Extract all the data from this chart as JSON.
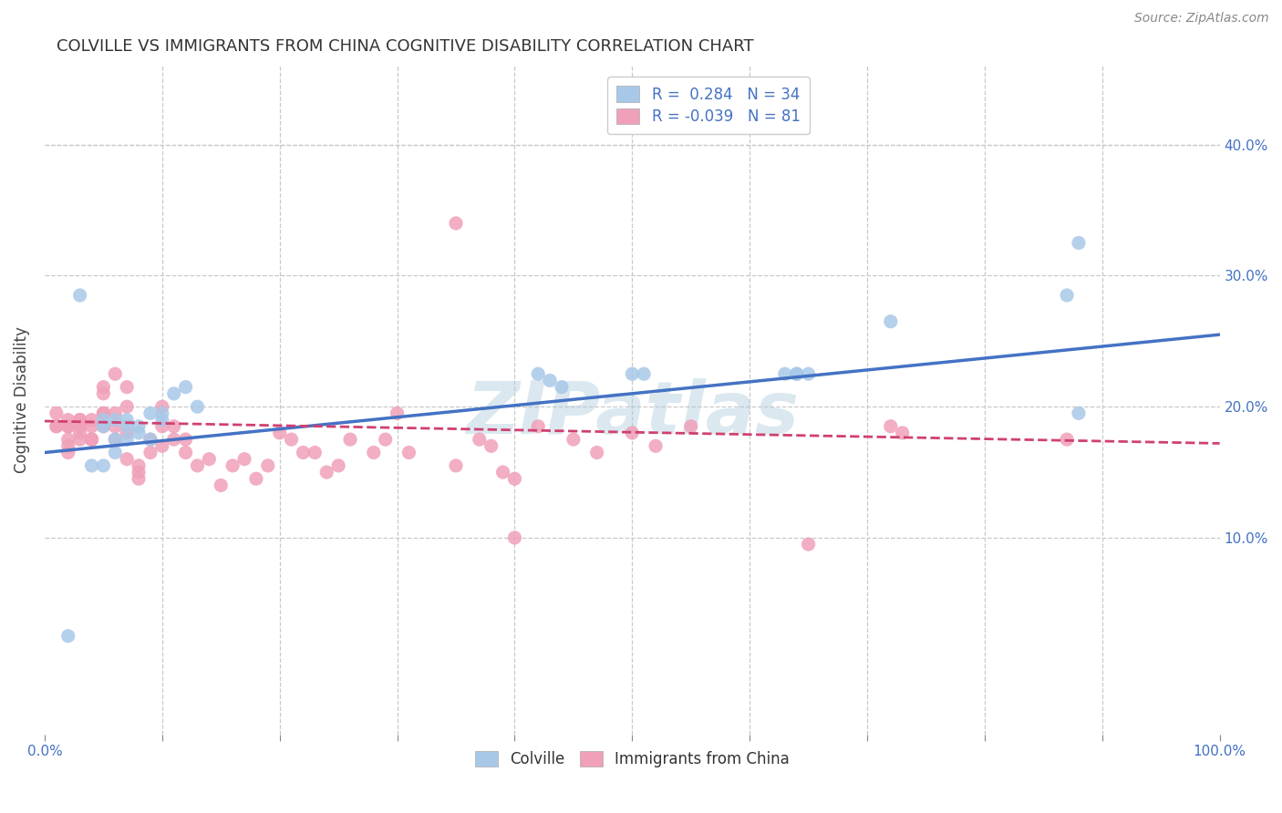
{
  "title": "COLVILLE VS IMMIGRANTS FROM CHINA COGNITIVE DISABILITY CORRELATION CHART",
  "source": "Source: ZipAtlas.com",
  "ylabel": "Cognitive Disability",
  "right_yticks": [
    "10.0%",
    "20.0%",
    "30.0%",
    "40.0%"
  ],
  "right_ytick_vals": [
    0.1,
    0.2,
    0.3,
    0.4
  ],
  "colville_color": "#a8c8e8",
  "immigrants_color": "#f0a0b8",
  "colville_line_color": "#4472c4",
  "immigrants_line_color": "#d04070",
  "legend_text_color": "#4472c4",
  "watermark": "ZIPatlas",
  "colville_x": [
    0.02,
    0.04,
    0.05,
    0.06,
    0.06,
    0.07,
    0.07,
    0.08,
    0.08,
    0.09,
    0.1,
    0.1,
    0.11,
    0.12,
    0.13,
    0.42,
    0.43,
    0.44,
    0.63,
    0.65,
    0.72,
    0.87,
    0.88,
    0.05,
    0.05,
    0.06,
    0.07,
    0.09,
    0.5,
    0.51,
    0.64,
    0.64,
    0.88,
    0.03
  ],
  "colville_y": [
    0.025,
    0.155,
    0.19,
    0.19,
    0.175,
    0.175,
    0.185,
    0.18,
    0.185,
    0.195,
    0.19,
    0.195,
    0.21,
    0.215,
    0.2,
    0.225,
    0.22,
    0.215,
    0.225,
    0.225,
    0.265,
    0.285,
    0.325,
    0.155,
    0.185,
    0.165,
    0.19,
    0.175,
    0.225,
    0.225,
    0.225,
    0.225,
    0.195,
    0.285
  ],
  "immigrants_x": [
    0.01,
    0.01,
    0.01,
    0.02,
    0.02,
    0.02,
    0.02,
    0.02,
    0.02,
    0.02,
    0.03,
    0.03,
    0.03,
    0.03,
    0.03,
    0.03,
    0.04,
    0.04,
    0.04,
    0.04,
    0.04,
    0.05,
    0.05,
    0.05,
    0.05,
    0.05,
    0.06,
    0.06,
    0.06,
    0.06,
    0.07,
    0.07,
    0.07,
    0.07,
    0.08,
    0.08,
    0.08,
    0.09,
    0.09,
    0.1,
    0.1,
    0.1,
    0.11,
    0.11,
    0.12,
    0.12,
    0.13,
    0.14,
    0.15,
    0.16,
    0.17,
    0.18,
    0.19,
    0.2,
    0.21,
    0.22,
    0.23,
    0.24,
    0.25,
    0.26,
    0.28,
    0.29,
    0.3,
    0.31,
    0.35,
    0.37,
    0.38,
    0.39,
    0.4,
    0.42,
    0.45,
    0.47,
    0.5,
    0.52,
    0.55,
    0.65,
    0.72,
    0.73,
    0.87,
    0.35,
    0.4
  ],
  "immigrants_y": [
    0.195,
    0.185,
    0.185,
    0.19,
    0.185,
    0.185,
    0.185,
    0.175,
    0.165,
    0.17,
    0.185,
    0.19,
    0.19,
    0.185,
    0.18,
    0.175,
    0.175,
    0.185,
    0.19,
    0.175,
    0.175,
    0.215,
    0.21,
    0.195,
    0.195,
    0.185,
    0.225,
    0.195,
    0.175,
    0.185,
    0.215,
    0.2,
    0.18,
    0.16,
    0.155,
    0.15,
    0.145,
    0.175,
    0.165,
    0.17,
    0.2,
    0.185,
    0.185,
    0.175,
    0.175,
    0.165,
    0.155,
    0.16,
    0.14,
    0.155,
    0.16,
    0.145,
    0.155,
    0.18,
    0.175,
    0.165,
    0.165,
    0.15,
    0.155,
    0.175,
    0.165,
    0.175,
    0.195,
    0.165,
    0.155,
    0.175,
    0.17,
    0.15,
    0.145,
    0.185,
    0.175,
    0.165,
    0.18,
    0.17,
    0.185,
    0.095,
    0.185,
    0.18,
    0.175,
    0.34,
    0.1
  ],
  "xlim": [
    0.0,
    1.0
  ],
  "ylim": [
    -0.05,
    0.46
  ],
  "colville_trend_x": [
    0.0,
    1.0
  ],
  "colville_trend_y": [
    0.165,
    0.255
  ],
  "immigrants_trend_x": [
    0.0,
    1.0
  ],
  "immigrants_trend_y": [
    0.189,
    0.172
  ],
  "bg_color": "#ffffff",
  "grid_color": "#c8c8c8"
}
